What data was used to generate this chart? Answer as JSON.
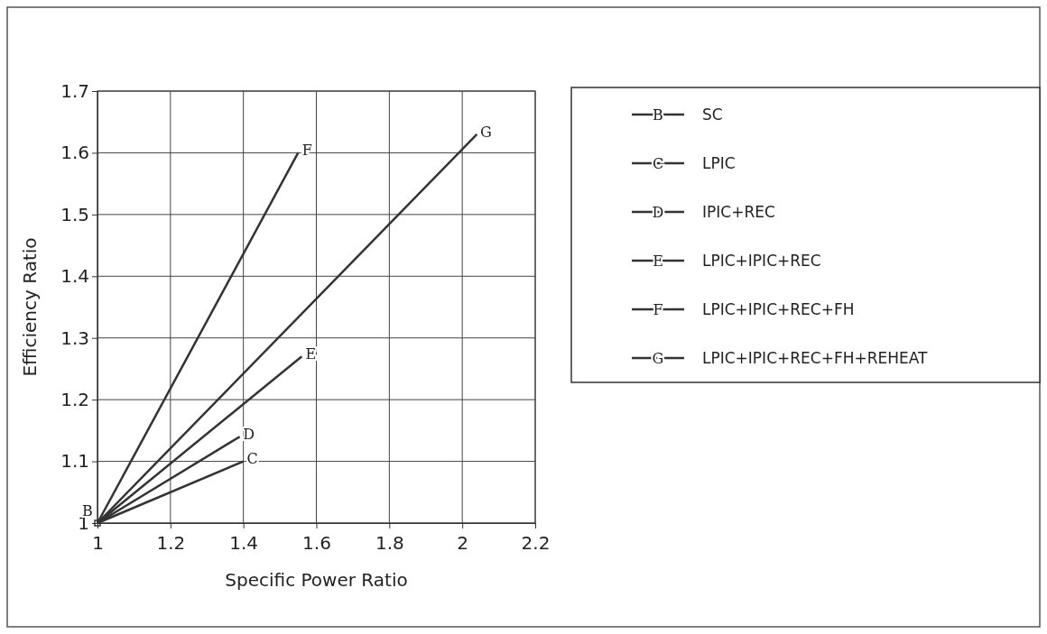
{
  "chart_data": {
    "type": "line",
    "xlabel": "Specific Power Ratio",
    "ylabel": "Efficiency Ratio",
    "xlim": [
      1,
      2.2
    ],
    "xticks": [
      1,
      1.2,
      1.4,
      1.6,
      1.8,
      2,
      2.2
    ],
    "ylim": [
      1,
      1.7
    ],
    "yticks": [
      1,
      1.1,
      1.2,
      1.3,
      1.4,
      1.5,
      1.6,
      1.7
    ],
    "grid": true,
    "legend": "right",
    "series": [
      {
        "name": "SC",
        "type": "scatter",
        "color": "#333333",
        "x": [
          1
        ],
        "values": [
          1
        ]
      },
      {
        "name": "LPIC",
        "color": "#333333",
        "x": [
          1,
          1.4
        ],
        "values": [
          1,
          1.1
        ]
      },
      {
        "name": "IPIC+REC",
        "color": "#333333",
        "x": [
          1,
          1.39
        ],
        "values": [
          1,
          1.14
        ]
      },
      {
        "name": "LPIC+IPIC+REC",
        "color": "#333333",
        "x": [
          1,
          1.56
        ],
        "values": [
          1,
          1.27
        ]
      },
      {
        "name": "LPIC+IPIC+REC+FH",
        "color": "#333333",
        "x": [
          1,
          1.55
        ],
        "values": [
          1,
          1.6
        ]
      },
      {
        "name": "LPIC+IPIC+REC+FH+REHEAT",
        "color": "#333333",
        "x": [
          1,
          2.04
        ],
        "values": [
          1,
          1.63
        ]
      }
    ],
    "annotations": [
      {
        "text": "B",
        "x": 1,
        "y": 1
      },
      {
        "text": "C",
        "x": 1.4,
        "y": 1.1
      },
      {
        "text": "D",
        "x": 1.39,
        "y": 1.14
      },
      {
        "text": "E",
        "x": 1.56,
        "y": 1.27
      },
      {
        "text": "F",
        "x": 1.55,
        "y": 1.6
      },
      {
        "text": "G",
        "x": 2.04,
        "y": 1.63
      }
    ]
  }
}
